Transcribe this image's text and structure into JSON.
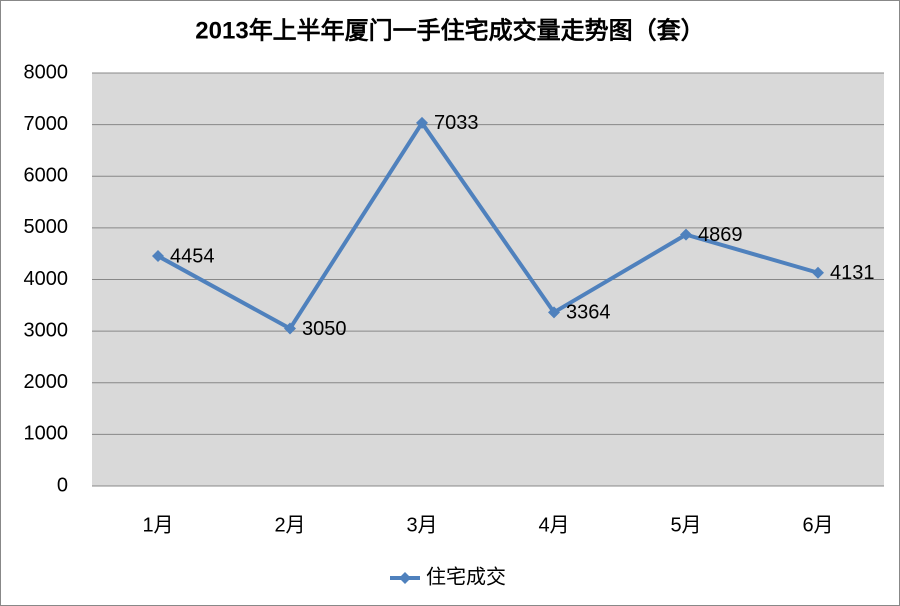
{
  "chart_data": {
    "type": "line",
    "title": "2013年上半年厦门一手住宅成交量走势图（套）",
    "categories": [
      "1月",
      "2月",
      "3月",
      "4月",
      "5月",
      "6月"
    ],
    "series": [
      {
        "name": "住宅成交",
        "color": "#4f81bd",
        "values": [
          4454,
          3050,
          7033,
          3364,
          4869,
          4131
        ]
      }
    ],
    "ylim": [
      0,
      8000
    ],
    "yticks": [
      0,
      1000,
      2000,
      3000,
      4000,
      5000,
      6000,
      7000,
      8000
    ],
    "grid": true,
    "legend": "bottom"
  }
}
